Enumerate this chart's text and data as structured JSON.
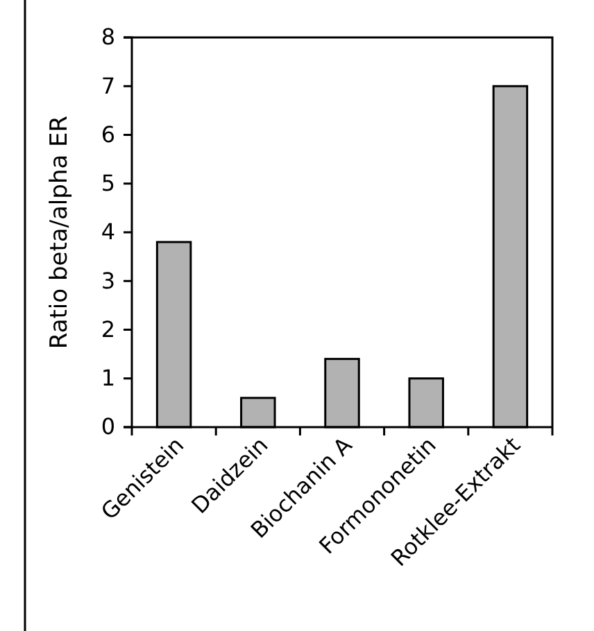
{
  "chart_data": {
    "type": "bar",
    "ylabel": "Ratio beta/alpha ER",
    "categories": [
      "Genistein",
      "Daidzein",
      "Biochanin A",
      "Formononetin",
      "Rotklee-Extrakt"
    ],
    "values": [
      3.8,
      0.6,
      1.4,
      1.0,
      7.0
    ],
    "color": "#b2b2b2",
    "ylim": [
      0,
      8
    ],
    "yticks": [
      0,
      1,
      2,
      3,
      4,
      5,
      6,
      7,
      8
    ],
    "grid": false
  }
}
